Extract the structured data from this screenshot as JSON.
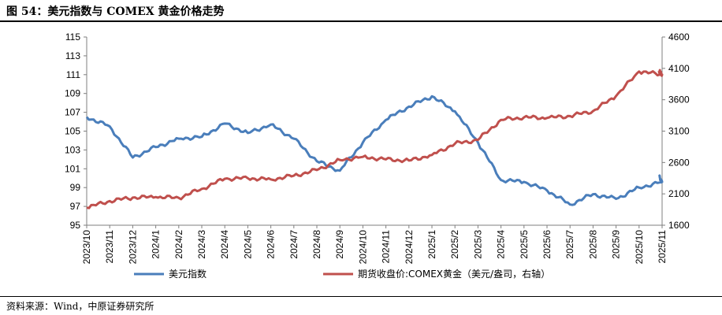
{
  "header": {
    "title": "图 54：美元指数与 COMEX 黄金价格走势"
  },
  "footer": {
    "source": "资料来源：Wind，中原证券研究所"
  },
  "chart_data": {
    "type": "line",
    "x_ticks": [
      "2023/10",
      "2023/11",
      "2023/12",
      "2024/1",
      "2024/2",
      "2024/3",
      "2024/4",
      "2024/5",
      "2024/6",
      "2024/7",
      "2024/8",
      "2024/9",
      "2024/10",
      "2024/11",
      "2024/12",
      "2025/1",
      "2025/2",
      "2025/3",
      "2025/4",
      "2025/5",
      "2025/6",
      "2025/7",
      "2025/8",
      "2025/9",
      "2025/10",
      "2025/11"
    ],
    "y_left": {
      "ticks": [
        95,
        97,
        99,
        101,
        103,
        105,
        107,
        109,
        111,
        113,
        115
      ],
      "range": [
        95,
        115
      ]
    },
    "y_right": {
      "ticks": [
        1600,
        2100,
        2600,
        3100,
        3600,
        4100,
        4600
      ],
      "range": [
        1600,
        4600
      ]
    },
    "grid": false,
    "legend_position": "bottom",
    "series": [
      {
        "name": "美元指数",
        "axis": "left",
        "color": "#4A7EBB",
        "x": [
          "2023/10",
          "2023/11",
          "2023/12",
          "2024/1",
          "2024/2",
          "2024/3",
          "2024/4",
          "2024/5",
          "2024/6",
          "2024/7",
          "2024/8",
          "2024/9",
          "2024/10",
          "2024/11",
          "2024/12",
          "2025/1",
          "2025/2",
          "2025/3",
          "2025/4",
          "2025/5",
          "2025/6",
          "2025/7",
          "2025/8",
          "2025/9",
          "2025/10",
          "2025/11",
          "2025/11"
        ],
        "values": [
          106.5,
          105.5,
          102.2,
          103.3,
          104.2,
          104.4,
          105.8,
          104.8,
          105.7,
          104.2,
          101.8,
          100.8,
          103.8,
          106.2,
          107.6,
          108.7,
          107.1,
          103.8,
          99.8,
          99.6,
          98.7,
          97.2,
          98.3,
          97.8,
          99.0,
          99.6,
          100.2
        ]
      },
      {
        "name": "期货收盘价:COMEX黄金（美元/盎司，右轴）",
        "axis": "right",
        "color": "#C0504D",
        "x": [
          "2023/10",
          "2023/11",
          "2023/12",
          "2024/1",
          "2024/2",
          "2024/3",
          "2024/4",
          "2024/5",
          "2024/6",
          "2024/7",
          "2024/8",
          "2024/9",
          "2024/10",
          "2024/11",
          "2024/12",
          "2025/1",
          "2025/2",
          "2025/3",
          "2025/4",
          "2025/5",
          "2025/6",
          "2025/7",
          "2025/8",
          "2025/9",
          "2025/10",
          "2025/11",
          "2025/11"
        ],
        "values": [
          1880,
          1985,
          2040,
          2050,
          2035,
          2180,
          2340,
          2350,
          2330,
          2390,
          2480,
          2640,
          2690,
          2650,
          2630,
          2720,
          2900,
          2960,
          3280,
          3320,
          3310,
          3340,
          3420,
          3660,
          4050,
          4000,
          4060
        ]
      }
    ]
  }
}
